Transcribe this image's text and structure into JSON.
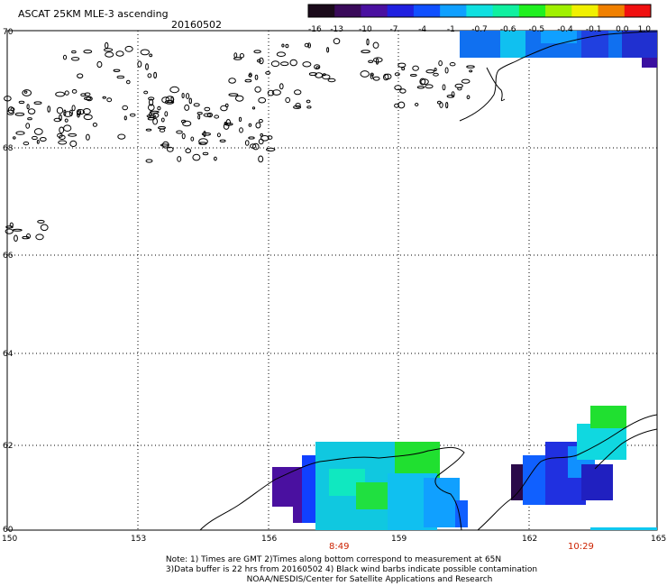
{
  "header": {
    "title": "ASCAT 25KM MLE-3 ascending",
    "date": "20160502"
  },
  "colorbar": {
    "tick_labels": [
      "-16",
      "-13",
      "-10",
      "-7",
      "-4",
      "-1",
      "-0.7",
      "-0.6",
      "-0.5",
      "-0.4",
      "-0.1",
      "0.0",
      "1.0"
    ],
    "colors": [
      "#1a0a1a",
      "#3a0a5a",
      "#4a10a0",
      "#2020e0",
      "#1050ff",
      "#10a0ff",
      "#10e0e0",
      "#10f0a0",
      "#20f020",
      "#a0f000",
      "#f0f000",
      "#f08000",
      "#f01010"
    ]
  },
  "map": {
    "lat_labels": [
      "70",
      "68",
      "66",
      "64",
      "62",
      "60"
    ],
    "lon_labels": [
      "150",
      "153",
      "156",
      "159",
      "162",
      "165"
    ],
    "time_labels": [
      "8:49",
      "10:29"
    ]
  },
  "notes": [
    "Note: 1) Times are GMT 2)Times along bottom correspond to measurement at 65N",
    "3)Data buffer is 22 hrs from 20160502 4) Black wind barbs indicate possible contamination",
    "NOAA/NESDIS/Center for Satellite Applications and Research"
  ]
}
